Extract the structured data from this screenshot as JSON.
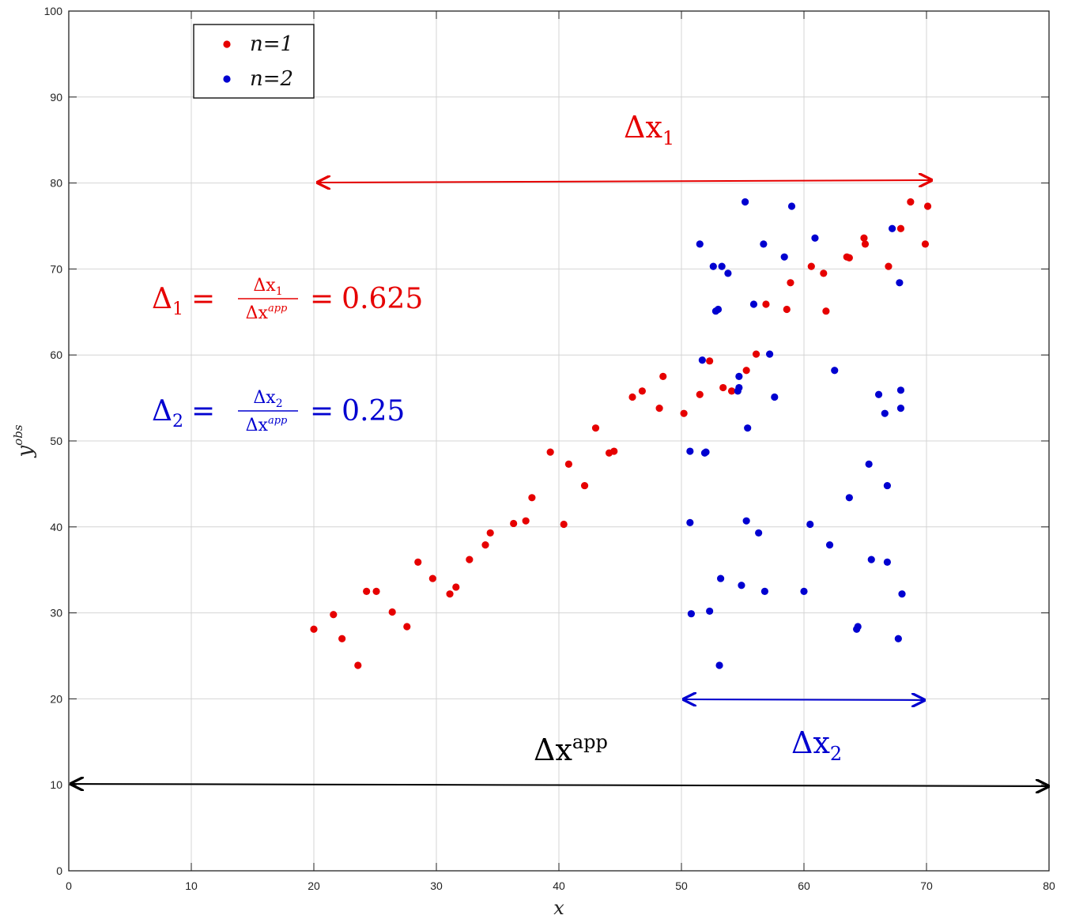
{
  "chart_data": {
    "type": "scatter",
    "xlabel": "x",
    "ylabel": "y",
    "ylabel_sup": "obs",
    "xlim": [
      0,
      80
    ],
    "ylim": [
      0,
      100
    ],
    "xticks": [
      0,
      10,
      20,
      30,
      40,
      50,
      60,
      70,
      80
    ],
    "yticks": [
      0,
      10,
      20,
      30,
      40,
      50,
      60,
      70,
      80,
      90,
      100
    ],
    "grid": true,
    "legend": {
      "placement": "top-left",
      "entries": [
        "n=1",
        "n=2"
      ]
    },
    "series": [
      {
        "name": "n=1",
        "color": "#e60000",
        "points": [
          [
            20.0,
            28.1
          ],
          [
            21.6,
            29.8
          ],
          [
            22.3,
            27.0
          ],
          [
            23.6,
            23.9
          ],
          [
            24.3,
            32.5
          ],
          [
            25.1,
            32.5
          ],
          [
            26.4,
            30.1
          ],
          [
            27.6,
            28.4
          ],
          [
            28.5,
            35.9
          ],
          [
            29.7,
            34.0
          ],
          [
            31.1,
            32.2
          ],
          [
            31.6,
            33.0
          ],
          [
            32.7,
            36.2
          ],
          [
            34.0,
            37.9
          ],
          [
            34.4,
            39.3
          ],
          [
            36.3,
            40.4
          ],
          [
            37.3,
            40.7
          ],
          [
            37.8,
            43.4
          ],
          [
            39.3,
            48.7
          ],
          [
            40.4,
            40.3
          ],
          [
            40.8,
            47.3
          ],
          [
            42.1,
            44.8
          ],
          [
            43.0,
            51.5
          ],
          [
            44.1,
            48.6
          ],
          [
            44.5,
            48.8
          ],
          [
            46.0,
            55.1
          ],
          [
            46.8,
            55.8
          ],
          [
            48.2,
            53.8
          ],
          [
            48.5,
            57.5
          ],
          [
            50.2,
            53.2
          ],
          [
            51.5,
            55.4
          ],
          [
            52.3,
            59.3
          ],
          [
            53.4,
            56.2
          ],
          [
            54.1,
            55.8
          ],
          [
            55.3,
            58.2
          ],
          [
            56.1,
            60.1
          ],
          [
            56.9,
            65.9
          ],
          [
            58.6,
            65.3
          ],
          [
            58.9,
            68.4
          ],
          [
            60.6,
            70.3
          ],
          [
            61.6,
            69.5
          ],
          [
            61.8,
            65.1
          ],
          [
            63.5,
            71.4
          ],
          [
            63.7,
            71.3
          ],
          [
            64.9,
            73.6
          ],
          [
            65.0,
            72.9
          ],
          [
            66.9,
            70.3
          ],
          [
            67.9,
            74.7
          ],
          [
            68.7,
            77.8
          ],
          [
            69.9,
            72.9
          ],
          [
            70.1,
            77.3
          ]
        ]
      },
      {
        "name": "n=2",
        "color": "#0000d0",
        "points": [
          [
            50.7,
            40.5
          ],
          [
            50.7,
            48.8
          ],
          [
            50.8,
            29.9
          ],
          [
            51.5,
            72.9
          ],
          [
            51.7,
            59.4
          ],
          [
            51.9,
            48.6
          ],
          [
            52.0,
            48.7
          ],
          [
            52.3,
            30.2
          ],
          [
            52.6,
            70.3
          ],
          [
            52.8,
            65.1
          ],
          [
            53.0,
            65.3
          ],
          [
            53.1,
            23.9
          ],
          [
            53.2,
            34.0
          ],
          [
            53.3,
            70.3
          ],
          [
            53.8,
            69.5
          ],
          [
            54.6,
            55.8
          ],
          [
            54.7,
            56.2
          ],
          [
            54.7,
            57.5
          ],
          [
            54.9,
            33.2
          ],
          [
            55.2,
            77.8
          ],
          [
            55.3,
            40.7
          ],
          [
            55.4,
            51.5
          ],
          [
            55.9,
            65.9
          ],
          [
            56.3,
            39.3
          ],
          [
            56.8,
            32.5
          ],
          [
            56.7,
            72.9
          ],
          [
            57.2,
            60.1
          ],
          [
            57.6,
            55.1
          ],
          [
            58.4,
            71.4
          ],
          [
            59.0,
            77.3
          ],
          [
            60.0,
            32.5
          ],
          [
            60.5,
            40.3
          ],
          [
            60.9,
            73.6
          ],
          [
            62.1,
            37.9
          ],
          [
            62.5,
            58.2
          ],
          [
            63.7,
            43.4
          ],
          [
            64.3,
            28.1
          ],
          [
            64.4,
            28.4
          ],
          [
            65.3,
            47.3
          ],
          [
            65.5,
            36.2
          ],
          [
            66.1,
            55.4
          ],
          [
            66.6,
            53.2
          ],
          [
            66.8,
            35.9
          ],
          [
            66.8,
            44.8
          ],
          [
            67.2,
            74.7
          ],
          [
            67.7,
            27.0
          ],
          [
            67.8,
            68.4
          ],
          [
            67.9,
            53.8
          ],
          [
            67.9,
            55.9
          ],
          [
            68.0,
            32.2
          ]
        ]
      }
    ],
    "annotations": {
      "delta1": {
        "label": "Δx",
        "sub": "1",
        "color": "#e60000",
        "x_start": 20,
        "x_end": 70,
        "y": 80
      },
      "delta2": {
        "label": "Δx",
        "sub": "2",
        "color": "#0000d0",
        "x_start": 50,
        "x_end": 70,
        "y": 19.8
      },
      "delta_app": {
        "label": "Δx",
        "sup": "app",
        "color": "#000000",
        "x_start": 0,
        "x_end": 80,
        "y": 10
      },
      "ratio1": {
        "lhs": "Δ",
        "lhs_sub": "1",
        "num": "Δx",
        "num_sub": "1",
        "den": "Δx",
        "den_sup": "app",
        "value": "0.625",
        "color": "#e60000"
      },
      "ratio2": {
        "lhs": "Δ",
        "lhs_sub": "2",
        "num": "Δx",
        "num_sub": "2",
        "den": "Δx",
        "den_sup": "app",
        "value": "0.25",
        "color": "#0000d0"
      }
    }
  }
}
